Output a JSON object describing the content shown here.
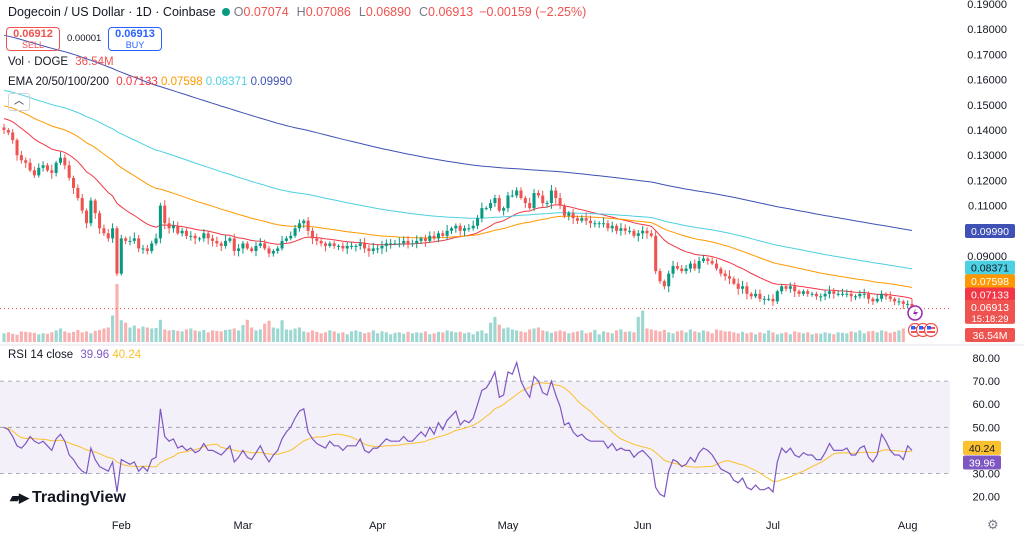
{
  "header": {
    "title": "Dogecoin / US Dollar · 1D · Coinbase",
    "o_label": "O",
    "o_value": "0.07074",
    "h_label": "H",
    "h_value": "0.07086",
    "l_label": "L",
    "l_value": "0.06890",
    "c_label": "C",
    "c_value": "0.06913",
    "change": "−0.00159 (−2.25%)"
  },
  "trade": {
    "sell_price": "0.06912",
    "sell_label": "SELL",
    "spread": "0.00001",
    "buy_price": "0.06913",
    "buy_label": "BUY"
  },
  "vol_legend": {
    "label": "Vol · DOGE",
    "value": "36.54M"
  },
  "ema_legend": {
    "label": "EMA 20/50/100/200",
    "v20": "0.07133",
    "v50": "0.07598",
    "v100": "0.08371",
    "v200": "0.09990"
  },
  "rsi_legend": {
    "label": "RSI 14 close",
    "v1": "39.96",
    "v2": "40.24"
  },
  "logo_text": "TradingView",
  "colors": {
    "up": "#089981",
    "down": "#ef5350",
    "ema20": "#f23645",
    "ema50": "#ff9800",
    "ema100": "#4dd0e1",
    "ema200": "#3f51b5",
    "rsi": "#7e57c2",
    "rsi_ma": "#fbc02d"
  },
  "chart_data": [
    {
      "type": "candlestick",
      "title": "Dogecoin / US Dollar · 1D · Coinbase",
      "price_axis_ticks": [
        0.19,
        0.18,
        0.17,
        0.16,
        0.15,
        0.14,
        0.13,
        0.12,
        0.11,
        0.1,
        0.09,
        0.08,
        0.07
      ],
      "price_axis_labels": [
        "0.19000",
        "0.18000",
        "0.17000",
        "0.16000",
        "0.15000",
        "0.14000",
        "0.13000",
        "0.12000",
        "0.11000",
        "0.09000"
      ],
      "x_labels": [
        "Feb",
        "Mar",
        "Apr",
        "May",
        "Jun",
        "Jul",
        "Aug"
      ],
      "close": [
        0.14,
        0.139,
        0.136,
        0.13,
        0.128,
        0.127,
        0.124,
        0.122,
        0.125,
        0.126,
        0.124,
        0.123,
        0.127,
        0.129,
        0.126,
        0.121,
        0.117,
        0.113,
        0.108,
        0.103,
        0.112,
        0.107,
        0.101,
        0.099,
        0.097,
        0.101,
        0.083,
        0.097,
        0.096,
        0.096,
        0.097,
        0.093,
        0.093,
        0.092,
        0.095,
        0.097,
        0.11,
        0.103,
        0.101,
        0.102,
        0.099,
        0.1,
        0.098,
        0.098,
        0.097,
        0.097,
        0.099,
        0.097,
        0.096,
        0.095,
        0.094,
        0.096,
        0.097,
        0.092,
        0.093,
        0.095,
        0.093,
        0.092,
        0.094,
        0.095,
        0.093,
        0.091,
        0.092,
        0.093,
        0.096,
        0.097,
        0.098,
        0.101,
        0.103,
        0.104,
        0.1,
        0.097,
        0.096,
        0.095,
        0.094,
        0.095,
        0.094,
        0.094,
        0.093,
        0.094,
        0.094,
        0.094,
        0.095,
        0.093,
        0.092,
        0.093,
        0.093,
        0.094,
        0.095,
        0.095,
        0.095,
        0.095,
        0.096,
        0.095,
        0.095,
        0.096,
        0.097,
        0.096,
        0.098,
        0.097,
        0.099,
        0.098,
        0.1,
        0.101,
        0.102,
        0.1,
        0.101,
        0.101,
        0.102,
        0.105,
        0.109,
        0.109,
        0.111,
        0.113,
        0.108,
        0.109,
        0.114,
        0.114,
        0.116,
        0.113,
        0.111,
        0.109,
        0.115,
        0.114,
        0.111,
        0.111,
        0.116,
        0.113,
        0.11,
        0.106,
        0.107,
        0.105,
        0.104,
        0.105,
        0.104,
        0.103,
        0.103,
        0.103,
        0.103,
        0.101,
        0.102,
        0.1,
        0.101,
        0.1,
        0.1,
        0.098,
        0.099,
        0.1,
        0.099,
        0.098,
        0.084,
        0.08,
        0.078,
        0.083,
        0.086,
        0.085,
        0.084,
        0.085,
        0.087,
        0.085,
        0.088,
        0.089,
        0.088,
        0.087,
        0.085,
        0.083,
        0.082,
        0.081,
        0.079,
        0.077,
        0.078,
        0.075,
        0.074,
        0.075,
        0.073,
        0.073,
        0.073,
        0.072,
        0.076,
        0.078,
        0.077,
        0.078,
        0.076,
        0.075,
        0.076,
        0.075,
        0.075,
        0.074,
        0.074,
        0.075,
        0.076,
        0.075,
        0.075,
        0.075,
        0.075,
        0.074,
        0.074,
        0.075,
        0.075,
        0.073,
        0.072,
        0.073,
        0.075,
        0.074,
        0.073,
        0.072,
        0.072,
        0.071,
        0.071,
        0.069
      ]
    },
    {
      "type": "line",
      "title": "EMA 20/50/100/200",
      "series": [
        {
          "name": "EMA 20",
          "last": 0.07133
        },
        {
          "name": "EMA 50",
          "last": 0.07598
        },
        {
          "name": "EMA 100",
          "last": 0.08371
        },
        {
          "name": "EMA 200",
          "last": 0.0999
        }
      ]
    },
    {
      "type": "bar",
      "title": "Vol · DOGE",
      "last": "36.54M",
      "values": [
        18,
        20,
        17,
        15,
        22,
        21,
        20,
        19,
        16,
        18,
        17,
        20,
        24,
        28,
        22,
        19,
        21,
        25,
        20,
        22,
        18,
        23,
        25,
        28,
        30,
        55,
        120,
        45,
        40,
        30,
        34,
        28,
        32,
        30,
        28,
        29,
        46,
        26,
        24,
        25,
        23,
        22,
        26,
        28,
        24,
        22,
        25,
        20,
        24,
        23,
        22,
        25,
        26,
        28,
        24,
        35,
        46,
        30,
        24,
        26,
        38,
        44,
        30,
        28,
        45,
        26,
        25,
        28,
        30,
        22,
        20,
        24,
        21,
        18,
        20,
        24,
        22,
        18,
        20,
        16,
        22,
        24,
        21,
        18,
        20,
        24,
        18,
        22,
        20,
        16,
        19,
        20,
        17,
        21,
        18,
        20,
        19,
        22,
        16,
        18,
        21,
        20,
        24,
        22,
        20,
        21,
        18,
        20,
        16,
        22,
        24,
        18,
        40,
        52,
        36,
        28,
        30,
        26,
        24,
        22,
        20,
        26,
        28,
        30,
        24,
        22,
        19,
        22,
        24,
        22,
        18,
        20,
        22,
        24,
        18,
        20,
        25,
        16,
        22,
        20,
        18,
        24,
        26,
        21,
        22,
        20,
        52,
        65,
        28,
        26,
        24,
        22,
        25,
        20,
        18,
        22,
        24,
        20,
        26,
        22,
        20,
        24,
        22,
        18,
        26,
        24,
        22,
        22,
        20,
        18,
        21,
        18,
        20,
        16,
        20,
        18,
        24,
        20,
        16,
        18,
        20,
        16,
        22,
        20,
        18,
        20,
        16,
        18,
        17,
        20,
        18,
        16,
        20,
        19,
        18,
        22,
        20,
        24,
        18,
        22,
        23,
        20,
        24,
        22,
        19,
        21,
        24,
        28
      ]
    },
    {
      "type": "line",
      "title": "RSI 14 close",
      "y_ticks": [
        80,
        70,
        60,
        50,
        40,
        30,
        20
      ],
      "y_labels": [
        "80.00",
        "70.00",
        "60.00",
        "50.00",
        "30.00",
        "20.00"
      ],
      "series": [
        {
          "name": "RSI 14",
          "last": 39.96
        },
        {
          "name": "RSI MA",
          "last": 40.24
        }
      ],
      "rsi": [
        50,
        49,
        46,
        42,
        41,
        43,
        46,
        44,
        43,
        44,
        42,
        40,
        45,
        47,
        44,
        38,
        36,
        33,
        31,
        30,
        41,
        36,
        33,
        32,
        31,
        35,
        22,
        36,
        35,
        34,
        35,
        31,
        33,
        31,
        36,
        37,
        58,
        46,
        44,
        45,
        41,
        42,
        40,
        41,
        39,
        40,
        43,
        40,
        40,
        39,
        38,
        40,
        42,
        35,
        37,
        40,
        37,
        36,
        39,
        42,
        38,
        35,
        38,
        40,
        45,
        48,
        50,
        54,
        57,
        58,
        48,
        45,
        43,
        42,
        41,
        44,
        42,
        42,
        40,
        42,
        42,
        42,
        45,
        40,
        39,
        41,
        41,
        43,
        45,
        44,
        44,
        44,
        46,
        44,
        44,
        46,
        48,
        46,
        50,
        47,
        52,
        49,
        53,
        55,
        57,
        51,
        53,
        52,
        54,
        60,
        66,
        67,
        70,
        74,
        63,
        64,
        74,
        73,
        78,
        70,
        66,
        63,
        72,
        70,
        65,
        64,
        70,
        64,
        59,
        51,
        52,
        48,
        46,
        47,
        45,
        44,
        44,
        44,
        44,
        41,
        43,
        40,
        41,
        40,
        40,
        37,
        39,
        40,
        38,
        36,
        24,
        21,
        20,
        31,
        36,
        35,
        33,
        34,
        37,
        35,
        39,
        41,
        40,
        38,
        35,
        32,
        31,
        30,
        27,
        26,
        28,
        24,
        23,
        25,
        23,
        23,
        24,
        22,
        35,
        41,
        39,
        41,
        38,
        37,
        39,
        38,
        38,
        36,
        36,
        39,
        43,
        40,
        40,
        40,
        41,
        38,
        38,
        41,
        42,
        37,
        35,
        38,
        47,
        44,
        40,
        38,
        38,
        36,
        42,
        40
      ]
    }
  ],
  "price_tags": [
    {
      "name": "ema200",
      "text": "0.09990"
    },
    {
      "name": "ema100",
      "text": "0.08371"
    },
    {
      "name": "ema50",
      "text": "0.07598"
    },
    {
      "name": "ema20",
      "text": "0.07133"
    },
    {
      "name": "price",
      "text": "0.06913",
      "sub": "15:18:29"
    },
    {
      "name": "volume",
      "text": "36.54M"
    }
  ],
  "rsi_tags": [
    {
      "name": "rsi-ma",
      "text": "40.24"
    },
    {
      "name": "rsi",
      "text": "39.96"
    }
  ]
}
